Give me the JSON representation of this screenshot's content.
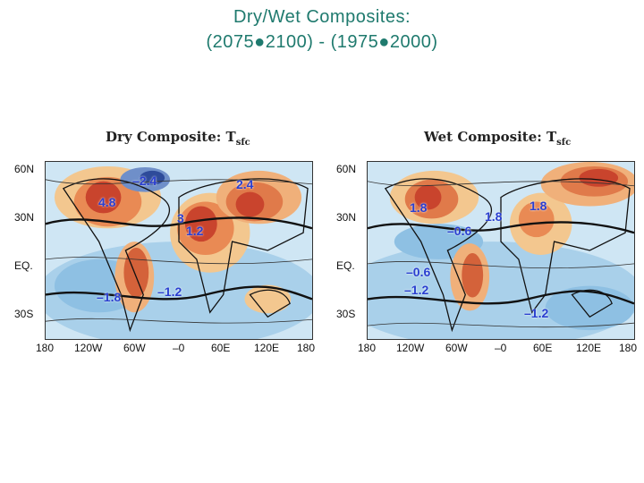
{
  "title": {
    "line1": "Dry/Wet Composites:",
    "line2": "(2075●2100) - (1975●2000)"
  },
  "panels": [
    {
      "label": "Dry Composite: T",
      "label_sub": "sfc",
      "lat_labels": [
        "60N",
        "30N",
        "EQ.",
        "30S"
      ],
      "lon_labels": [
        "180",
        "120W",
        "60W",
        "–0",
        "60E",
        "120E",
        "180"
      ],
      "values": [
        "–2.4",
        "4.8",
        "2.4",
        "3",
        "1.2",
        "–1.8",
        "–1.2"
      ]
    },
    {
      "label": "Wet Composite: T",
      "label_sub": "sfc",
      "lat_labels": [
        "60N",
        "30N",
        "EQ.",
        "30S"
      ],
      "lon_labels": [
        "180",
        "120W",
        "60W",
        "–0",
        "60E",
        "120E",
        "180"
      ],
      "values": [
        "1.8",
        "1.8",
        "1.8",
        "–0.6",
        "–0.6",
        "–1.2",
        "–1.2"
      ]
    }
  ]
}
